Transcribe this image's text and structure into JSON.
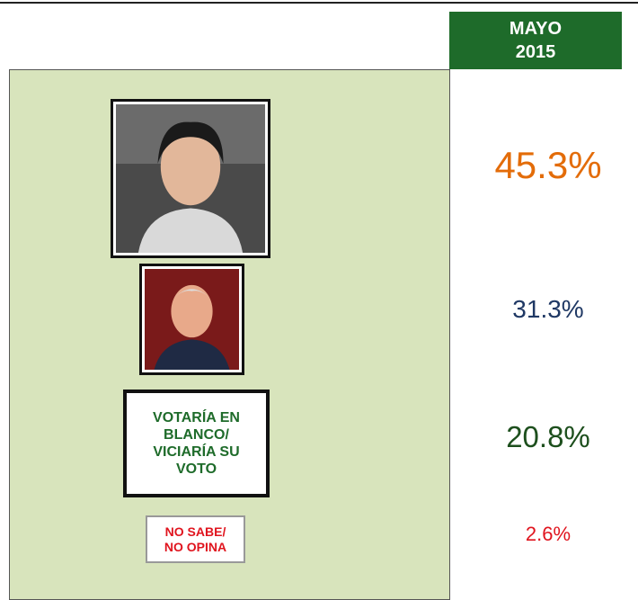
{
  "header": {
    "title_lines": [
      "MAYO",
      "2015"
    ]
  },
  "rows": [
    {
      "value": "45.3%"
    },
    {
      "value": "31.3%"
    },
    {
      "label_lines": [
        "VOTARÍA EN",
        "BLANCO/",
        "VICIARÍA SU",
        "VOTO"
      ],
      "value": "20.8%"
    },
    {
      "label_lines": [
        "NO SABE/",
        "NO OPINA"
      ],
      "value": "2.6%"
    }
  ]
}
